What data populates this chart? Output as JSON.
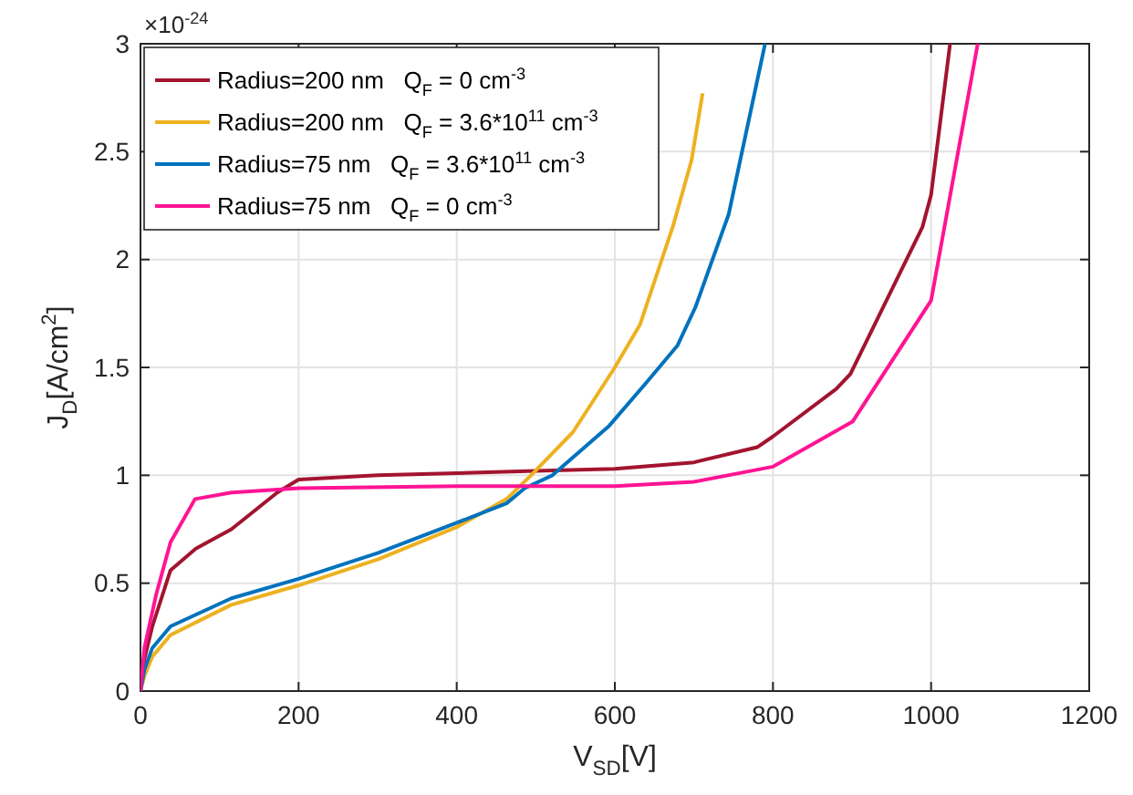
{
  "chart_data": {
    "type": "line",
    "xlabel": "V$_{SD}$[V]",
    "ylabel": "J$_{D}$[A/cm$^{2}$]",
    "annotations": [
      "×10$^{-24}$"
    ],
    "xlim": [
      0,
      1200
    ],
    "xticks": [
      0,
      200,
      400,
      600,
      800,
      1000,
      1200
    ],
    "ylim": [
      0,
      3
    ],
    "yticks": [
      0,
      0.5,
      1,
      1.5,
      2,
      2.5,
      3
    ],
    "grid": true,
    "legend": "top left",
    "line_style": "solid",
    "marker": "none",
    "series": [
      {
        "name": "Radius=200 nm   Q$_{F}$ = 0 cm$^{-3}$",
        "color": "#a2142f",
        "x": [
          0,
          5,
          15,
          38,
          70,
          115,
          173,
          200,
          300,
          400,
          500,
          600,
          700,
          780,
          800,
          880,
          898,
          989,
          1000,
          1024
        ],
        "values": [
          0,
          0.15,
          0.3,
          0.56,
          0.66,
          0.75,
          0.92,
          0.98,
          1.0,
          1.01,
          1.02,
          1.03,
          1.06,
          1.13,
          1.18,
          1.4,
          1.47,
          2.15,
          2.3,
          3.0
        ]
      },
      {
        "name": "Radius=200 nm   Q$_{F}$ = 3.6*10$^{11}$ cm$^{-3}$",
        "color": "#edb120",
        "x": [
          0,
          5,
          15,
          38,
          115,
          200,
          300,
          400,
          463,
          494,
          547,
          600,
          632,
          674,
          697,
          711
        ],
        "values": [
          0,
          0.07,
          0.16,
          0.26,
          0.4,
          0.49,
          0.61,
          0.76,
          0.89,
          1.0,
          1.2,
          1.5,
          1.7,
          2.16,
          2.46,
          2.77
        ]
      },
      {
        "name": "Radius=75 nm   Q$_{F}$ = 3.6*10$^{11}$ cm$^{-3}$",
        "color": "#0072bd",
        "x": [
          0,
          5,
          15,
          38,
          115,
          200,
          300,
          400,
          463,
          486,
          521,
          593,
          640,
          679,
          702,
          744,
          790
        ],
        "values": [
          0,
          0.1,
          0.2,
          0.3,
          0.43,
          0.52,
          0.64,
          0.78,
          0.87,
          0.94,
          1.0,
          1.23,
          1.43,
          1.6,
          1.78,
          2.21,
          3.0
        ]
      },
      {
        "name": "Radius=75 nm   Q$_{F}$ = 0 cm$^{-3}$",
        "color": "#ff1493",
        "x": [
          0,
          5,
          20,
          38,
          69,
          115,
          200,
          400,
          600,
          700,
          800,
          901,
          1000,
          1059
        ],
        "values": [
          0,
          0.2,
          0.45,
          0.69,
          0.89,
          0.92,
          0.94,
          0.95,
          0.95,
          0.97,
          1.04,
          1.25,
          1.81,
          3.0
        ]
      }
    ]
  }
}
